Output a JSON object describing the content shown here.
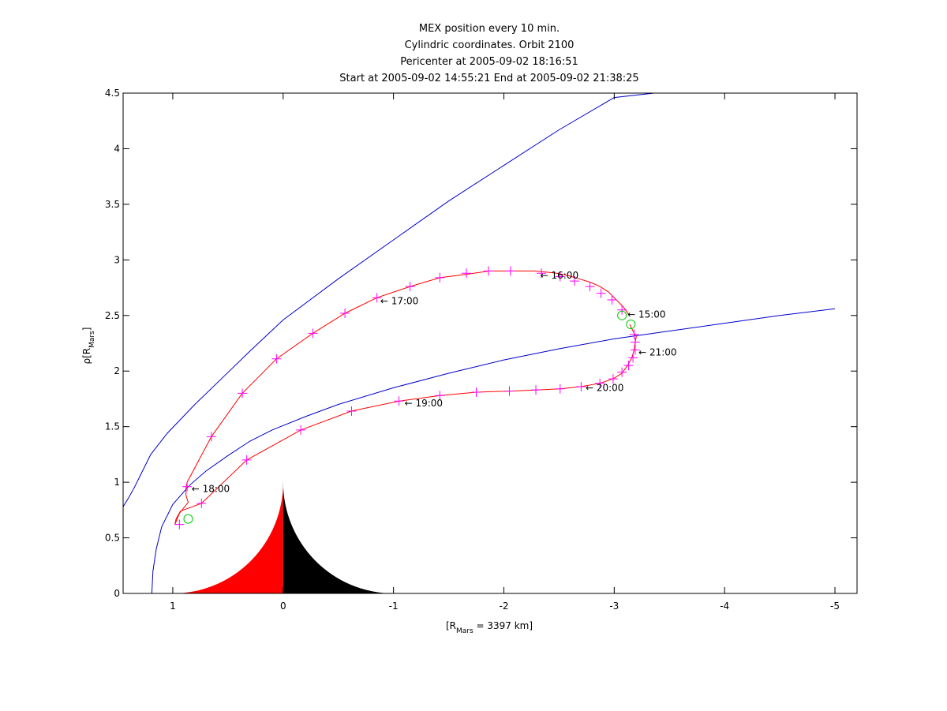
{
  "chart_data": {
    "type": "line",
    "title_lines": [
      "MEX position every 10 min.",
      "Cylindric coordinates. Orbit 2100",
      "Pericenter at 2005-09-02 18:16:51",
      "Start at 2005-09-02 14:55:21 End at 2005-09-02 21:38:25"
    ],
    "xlabel": {
      "pre": "[R",
      "sub": "Mars",
      "post": " = 3397 km]"
    },
    "ylabel": {
      "pre": "ρ[R",
      "sub": "Mars",
      "post": "]"
    },
    "xlim": [
      1.45,
      -5.2
    ],
    "ylim": [
      0,
      4.5
    ],
    "xticks": [
      1,
      0,
      -1,
      -2,
      -3,
      -4,
      -5
    ],
    "xtick_labels": [
      "1",
      "0",
      "-1",
      "-2",
      "-3",
      "-4",
      "-5"
    ],
    "yticks": [
      0,
      0.5,
      1,
      1.5,
      2,
      2.5,
      3,
      3.5,
      4,
      4.5
    ],
    "ytick_labels": [
      "0",
      "0.5",
      "1",
      "1.5",
      "2",
      "2.5",
      "3",
      "3.5",
      "4",
      "4.5"
    ],
    "grid": false,
    "colors": {
      "orbit": "#ff0000",
      "markers": "#ff00ff",
      "boundaries": "#0000cc",
      "events": "#00cc00",
      "planet_day": "#ff0000",
      "planet_night": "#000000"
    },
    "planet_radius": 1.0,
    "exosphere_ring_radius": 1.05,
    "bow_shock": {
      "x": [
        1.45,
        1.4,
        1.35,
        1.3,
        1.25,
        1.2,
        1.05,
        0.8,
        0.55,
        0.3,
        0.0,
        -0.5,
        -1.0,
        -1.5,
        -2.0,
        -2.5,
        -3.0,
        -3.36
      ],
      "y": [
        0.78,
        0.86,
        0.95,
        1.05,
        1.15,
        1.25,
        1.44,
        1.7,
        1.94,
        2.18,
        2.46,
        2.83,
        3.18,
        3.53,
        3.85,
        4.17,
        4.46,
        4.5
      ]
    },
    "induced_boundary": {
      "x": [
        1.19,
        1.18,
        1.15,
        1.1,
        1.0,
        0.85,
        0.7,
        0.5,
        0.3,
        0.1,
        -0.2,
        -0.5,
        -1.0,
        -1.5,
        -2.0,
        -2.5,
        -3.0,
        -3.5,
        -4.0,
        -4.5,
        -5.0
      ],
      "y": [
        0.0,
        0.2,
        0.4,
        0.6,
        0.8,
        0.97,
        1.1,
        1.24,
        1.37,
        1.47,
        1.59,
        1.7,
        1.85,
        1.98,
        2.1,
        2.2,
        2.29,
        2.36,
        2.43,
        2.5,
        2.56
      ]
    },
    "orbit_track": {
      "x": [
        -3.13,
        -3.08,
        -3.02,
        -2.95,
        -2.87,
        -2.78,
        -2.68,
        -2.58,
        -2.48,
        -2.38,
        -2.28,
        -2.18,
        -2.08,
        -1.98,
        -1.87,
        -1.66,
        -1.42,
        -1.15,
        -0.85,
        -0.56,
        -0.27,
        0.06,
        0.37,
        0.65,
        0.87,
        0.88,
        0.88,
        0.86,
        0.94,
        0.98,
        0.97,
        0.93,
        0.74,
        0.33,
        -0.16,
        -0.62,
        -1.05,
        -1.42,
        -1.75,
        -2.05,
        -2.29,
        -2.51,
        -2.7,
        -2.87,
        -2.99,
        -3.07,
        -3.12,
        -3.16,
        -3.18,
        -3.19,
        -3.2,
        -3.17,
        -3.14
      ],
      "y": [
        2.51,
        2.58,
        2.64,
        2.71,
        2.76,
        2.8,
        2.83,
        2.86,
        2.88,
        2.89,
        2.9,
        2.9,
        2.9,
        2.9,
        2.9,
        2.87,
        2.84,
        2.76,
        2.66,
        2.52,
        2.34,
        2.11,
        1.8,
        1.41,
        1.0,
        0.95,
        0.88,
        0.82,
        0.72,
        0.62,
        0.67,
        0.74,
        0.81,
        1.2,
        1.47,
        1.64,
        1.73,
        1.78,
        1.81,
        1.82,
        1.83,
        1.84,
        1.86,
        1.89,
        1.93,
        1.98,
        2.05,
        2.12,
        2.19,
        2.26,
        2.31,
        2.36,
        2.42
      ]
    },
    "markers": {
      "x": [
        -3.07,
        -2.98,
        -2.88,
        -2.78,
        -2.64,
        -2.51,
        -2.34,
        -2.06,
        -1.86,
        -1.66,
        -1.42,
        -1.15,
        -0.85,
        -0.56,
        -0.27,
        0.06,
        0.37,
        0.65,
        0.87,
        0.94,
        0.74,
        0.33,
        -0.16,
        -0.62,
        -1.05,
        -1.42,
        -1.75,
        -2.05,
        -2.29,
        -2.51,
        -2.7,
        -2.87,
        -2.99,
        -3.07,
        -3.13,
        -3.17,
        -3.19,
        -3.19,
        -3.18
      ],
      "y": [
        2.55,
        2.64,
        2.7,
        2.76,
        2.81,
        2.85,
        2.88,
        2.9,
        2.9,
        2.88,
        2.84,
        2.76,
        2.66,
        2.52,
        2.34,
        2.11,
        1.8,
        1.41,
        0.96,
        0.62,
        0.81,
        1.2,
        1.47,
        1.64,
        1.73,
        1.78,
        1.81,
        1.82,
        1.83,
        1.84,
        1.86,
        1.89,
        1.93,
        1.99,
        2.05,
        2.12,
        2.19,
        2.26,
        2.33
      ]
    },
    "events": {
      "x": [
        -3.07,
        -3.15,
        0.86
      ],
      "y": [
        2.5,
        2.42,
        0.67
      ]
    },
    "annotations": [
      {
        "text": "← 16:00",
        "x": -2.33,
        "y": 2.86
      },
      {
        "text": "← 17:00",
        "x": -0.88,
        "y": 2.63
      },
      {
        "text": "← 15:00",
        "x": -3.12,
        "y": 2.51
      },
      {
        "text": "← 21:00",
        "x": -3.22,
        "y": 2.17
      },
      {
        "text": "← 20:00",
        "x": -2.74,
        "y": 1.85
      },
      {
        "text": "← 19:00",
        "x": -1.1,
        "y": 1.71
      },
      {
        "text": "← 18:00",
        "x": 0.83,
        "y": 0.94
      }
    ]
  }
}
